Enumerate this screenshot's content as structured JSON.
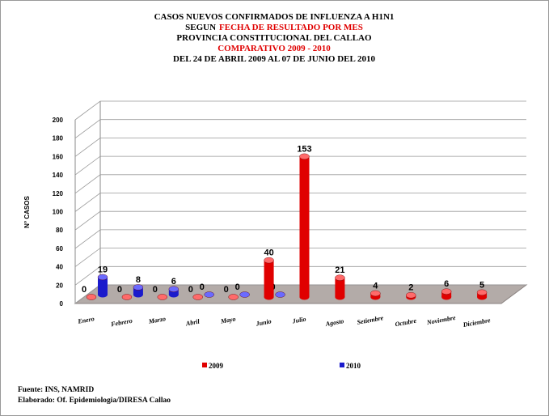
{
  "chart_data": {
    "type": "bar3d",
    "title": [
      [
        {
          "text": "CASOS NUEVOS CONFIRMADOS DE INFLUENZA A H1N1",
          "color": "#000000"
        }
      ],
      [
        {
          "text": "SEGUN",
          "color": "#000000"
        },
        {
          "text": "FECHA DE RESULTADO POR MES",
          "color": "#e00000"
        }
      ],
      [
        {
          "text": "PROVINCIA CONSTITUCIONAL DEL CALLAO",
          "color": "#000000"
        }
      ],
      [
        {
          "text": "COMPARATIVO 2009 - 2010",
          "color": "#e00000"
        }
      ],
      [
        {
          "text": "DEL 24 DE ABRIL 2009 AL 07 DE JUNIO DEL 2010",
          "color": "#000000"
        }
      ]
    ],
    "y_label": "N° CASOS",
    "categories": [
      "Enero",
      "Febrero",
      "Marzo",
      "Abril",
      "Mayo",
      "Junio",
      "Julio",
      "Agosto",
      "Setiembre",
      "Octubre",
      "Noviembre",
      "Diciembre"
    ],
    "series": [
      {
        "name": "2009",
        "color": "#e00000",
        "values": [
          0,
          0,
          0,
          0,
          0,
          40,
          153,
          21,
          4,
          2,
          6,
          5
        ]
      },
      {
        "name": "2010",
        "color": "#1a1acc",
        "values": [
          19,
          8,
          6,
          0,
          0,
          0,
          null,
          null,
          null,
          null,
          null,
          null
        ]
      }
    ],
    "ylim": [
      0,
      200
    ],
    "yticks": [
      0,
      20,
      40,
      60,
      80,
      100,
      120,
      140,
      160,
      180,
      200
    ],
    "grid": true,
    "legend": "bottom",
    "footnotes": [
      "Fuente: INS, NAMRID",
      "Elaborado: Of. Epidemiologia/DIRESA Callao"
    ]
  }
}
